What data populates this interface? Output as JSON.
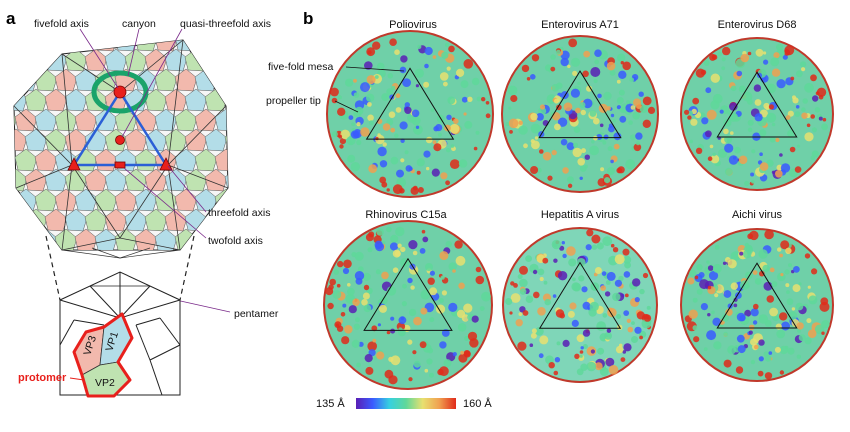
{
  "panel_a": {
    "letter": "a",
    "labels": {
      "fivefold_axis": "fivefold axis",
      "canyon": "canyon",
      "quasi_threefold_axis": "quasi-threefold axis",
      "threefold_axis": "threefold axis",
      "twofold_axis": "twofold axis",
      "pentamer": "pentamer",
      "protomer": "protomer",
      "vp1": "VP1",
      "vp2": "VP2",
      "vp3": "VP3"
    },
    "colors": {
      "vp1": "#b3dde8",
      "vp2": "#bfe3b1",
      "vp3": "#f2b9ad",
      "canyon": "#1aa36a",
      "axis_marker": "#e8201c",
      "triangle": "#2b5fd6",
      "protomer_outline": "#e8201c"
    }
  },
  "panel_b": {
    "letter": "b",
    "annotations": {
      "five_fold_mesa": "five-fold mesa",
      "propeller_tip": "propeller tip"
    },
    "viruses": [
      {
        "name": "Poliovirus"
      },
      {
        "name": "Enterovirus A71"
      },
      {
        "name": "Enterovirus D68"
      },
      {
        "name": "Rhinovirus C15a"
      },
      {
        "name": "Hepatitis A virus"
      },
      {
        "name": "Aichi virus"
      }
    ],
    "colorbar": {
      "min_label": "135 Å",
      "max_label": "160 Å",
      "stops": [
        "#5a1fb5",
        "#3a5bff",
        "#36d0e0",
        "#5fd89a",
        "#e8e070",
        "#f0a050",
        "#e02a1a"
      ]
    }
  }
}
